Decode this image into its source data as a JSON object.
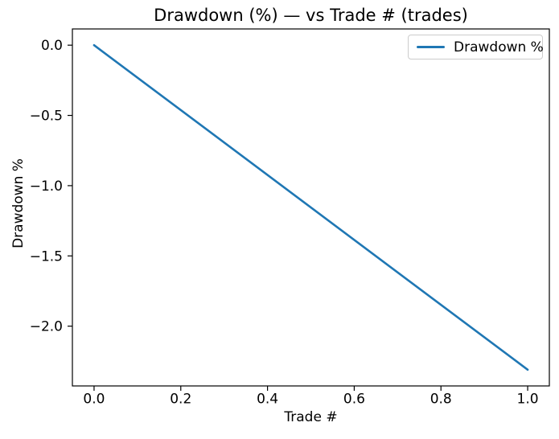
{
  "chart_data": {
    "type": "line",
    "title": "Drawdown (%) — vs Trade # (trades)",
    "xlabel": "Trade #",
    "ylabel": "Drawdown %",
    "series": [
      {
        "name": "Drawdown %",
        "color": "#1f77b4",
        "x": [
          0.0,
          1.0
        ],
        "y": [
          0.0,
          -2.31
        ]
      }
    ],
    "xlim": [
      -0.05,
      1.05
    ],
    "ylim": [
      -2.4255,
      0.1155
    ],
    "xticks": {
      "values": [
        0.0,
        0.2,
        0.4,
        0.6,
        0.8,
        1.0
      ],
      "labels": [
        "0.0",
        "0.2",
        "0.4",
        "0.6",
        "0.8",
        "1.0"
      ]
    },
    "yticks": {
      "values": [
        0.0,
        -0.5,
        -1.0,
        -1.5,
        -2.0
      ],
      "labels": [
        "0.0",
        "−0.5",
        "−1.0",
        "−1.5",
        "−2.0"
      ]
    },
    "grid": false,
    "legend": {
      "position": "upper right",
      "entries": [
        "Drawdown %"
      ]
    },
    "colors": {
      "axes": "#000000",
      "text": "#000000",
      "legend_border": "#cccccc",
      "background": "#ffffff",
      "line": "#1f77b4"
    }
  }
}
